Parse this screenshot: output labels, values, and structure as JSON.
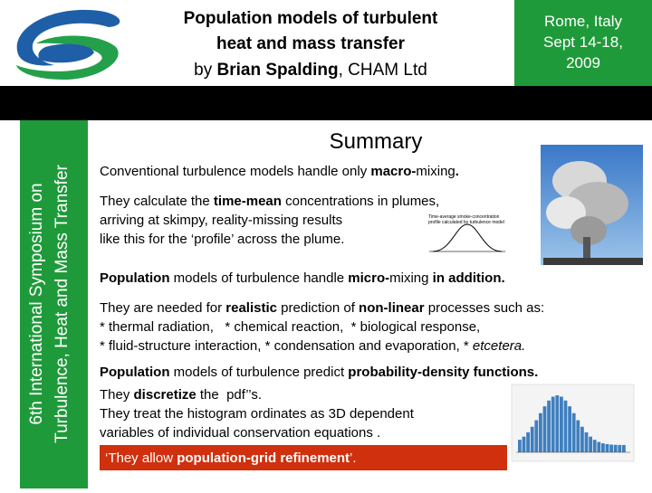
{
  "header": {
    "title_lines": [
      "Population models of turbulent",
      "heat and mass transfer"
    ],
    "byline": [
      {
        "text": "by "
      },
      {
        "text": "Brian Spalding",
        "bold": true
      },
      {
        "text": ", CHAM Ltd"
      }
    ],
    "location_lines": [
      "Rome, Italy",
      "Sept 14-18,",
      "2009"
    ]
  },
  "sidebar": {
    "lines": [
      "6th International Symposium on",
      "Turbulence, Heat and Mass Transfer"
    ]
  },
  "summary": {
    "heading": "Summary",
    "blocks": [
      {
        "lines": [
          [
            {
              "text": "Conventional turbulence models handle only "
            },
            {
              "text": "macro-",
              "bold": true
            },
            {
              "text": "mixing"
            },
            {
              "text": ".",
              "bold": true
            }
          ]
        ]
      },
      {
        "lines": [
          [
            {
              "text": "They calculate the "
            },
            {
              "text": "time-mean",
              "bold": true
            },
            {
              "text": " concentrations in plumes,"
            }
          ],
          [
            {
              "text": "arriving at skimpy, reality-missing results"
            }
          ],
          [
            {
              "text": "like this for the ‘profile’ across the plume."
            }
          ]
        ]
      },
      {
        "lines": [
          [
            {
              "text": "Population",
              "bold": true
            },
            {
              "text": " models of turbulence handle "
            },
            {
              "text": "micro-",
              "bold": true
            },
            {
              "text": "mixing "
            },
            {
              "text": "in addition.",
              "bold": true
            }
          ]
        ]
      },
      {
        "lines": [
          [
            {
              "text": "They are needed for "
            },
            {
              "text": "realistic",
              "bold": true
            },
            {
              "text": " prediction of "
            },
            {
              "text": "non-linear",
              "bold": true
            },
            {
              "text": " processes such as:"
            }
          ],
          [
            {
              "text": "* thermal radiation,   * chemical reaction,  * biological response,"
            }
          ],
          [
            {
              "text": "* fluid-structure interaction, * condensation and evaporation, * "
            },
            {
              "text": "etcetera.",
              "italic": true
            }
          ]
        ]
      },
      {
        "lines": [
          [
            {
              "text": "Population",
              "bold": true
            },
            {
              "text": " models of turbulence predict "
            },
            {
              "text": "probability-density functions.",
              "bold": true
            }
          ]
        ]
      },
      {
        "lines": [
          [
            {
              "text": "They "
            },
            {
              "text": "discretize",
              "bold": true
            },
            {
              "text": " the  pdf’’s."
            }
          ],
          [
            {
              "text": "They treat the histogram ordinates as 3D dependent"
            }
          ],
          [
            {
              "text": "variables of individual conservation equations ."
            }
          ]
        ]
      }
    ],
    "callout": [
      {
        "text": "‘They allow "
      },
      {
        "text": "population-grid refinement",
        "bold": true
      },
      {
        "text": "’."
      }
    ],
    "figure_caption": [
      "Time-average smoke-concentration",
      "profile calculated by turbulence model"
    ]
  }
}
